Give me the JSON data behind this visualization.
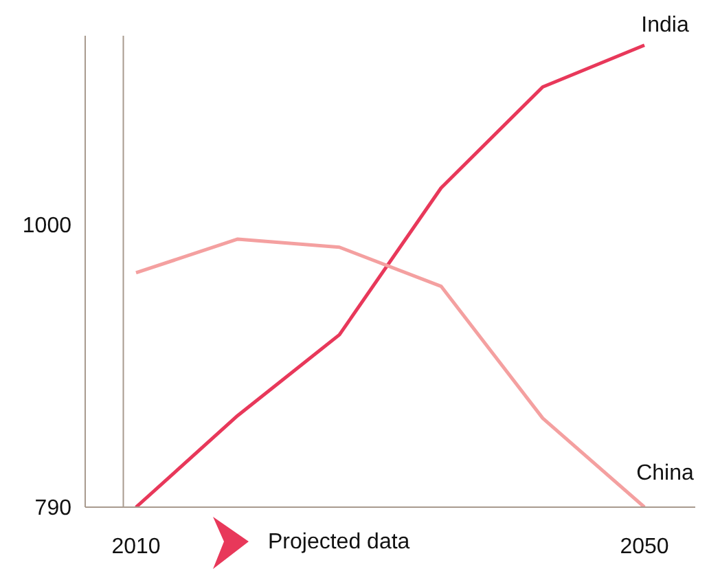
{
  "chart_data": {
    "type": "line",
    "x": [
      2010,
      2018,
      2026,
      2034,
      2042,
      2050
    ],
    "series": [
      {
        "name": "India",
        "color": "#e8385a",
        "values": [
          790,
          858,
          918,
          1027,
          1102,
          1133
        ]
      },
      {
        "name": "China",
        "color": "#f4a0a0",
        "values": [
          964,
          989,
          983,
          954,
          856,
          790
        ]
      }
    ],
    "xlim": [
      2006,
      2054
    ],
    "xticks": [
      2010,
      2050
    ],
    "ylim": [
      790,
      1140
    ],
    "yticks": [
      790,
      1000
    ],
    "ref_lines": [
      {
        "axis": "x",
        "value": 2009,
        "color": "#a89a8e"
      }
    ],
    "annotations": [
      "Projected data"
    ],
    "marker": "none",
    "line_style": "solid"
  }
}
